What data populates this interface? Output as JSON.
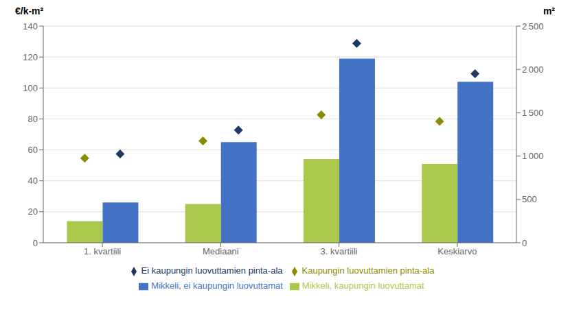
{
  "chart_data": {
    "type": "bar",
    "categories": [
      "1. kvartiili",
      "Mediaani",
      "3. kvartiili",
      "Keskiarvo"
    ],
    "series": [
      {
        "name": "Mikkeli, kaupungin luovuttamat",
        "color": "#a9c84c",
        "values": [
          14,
          25,
          54,
          51
        ]
      },
      {
        "name": "Mikkeli, ei kaupungin luovuttamat",
        "color": "#4472c4",
        "values": [
          26,
          65,
          119,
          104
        ]
      },
      {
        "name": "Kaupungin luovuttamien pinta-ala",
        "color": "#8b8c00",
        "values": [
          975,
          1175,
          1475,
          1400
        ],
        "axis": "y2",
        "type": "scatter",
        "marker": "diamond"
      },
      {
        "name": "Ei kaupungin luovuttamien pinta-ala",
        "color": "#203864",
        "values": [
          1025,
          1300,
          2300,
          1950
        ],
        "axis": "y2",
        "type": "scatter",
        "marker": "diamond"
      }
    ],
    "ylabel": "€/k-m²",
    "y2label": "m²",
    "ylim": [
      0,
      140
    ],
    "yticks": [
      0,
      20,
      40,
      60,
      80,
      100,
      120,
      140
    ],
    "y2lim": [
      0,
      2500
    ],
    "y2ticks": [
      0,
      500,
      {
        "value": 1000,
        "label": "1 000"
      },
      {
        "value": 1500,
        "label": "1 500"
      },
      {
        "value": 2000,
        "label": "2 000"
      },
      {
        "value": 2500,
        "label": "2 500"
      }
    ],
    "grid": true,
    "legend": "bottom"
  }
}
